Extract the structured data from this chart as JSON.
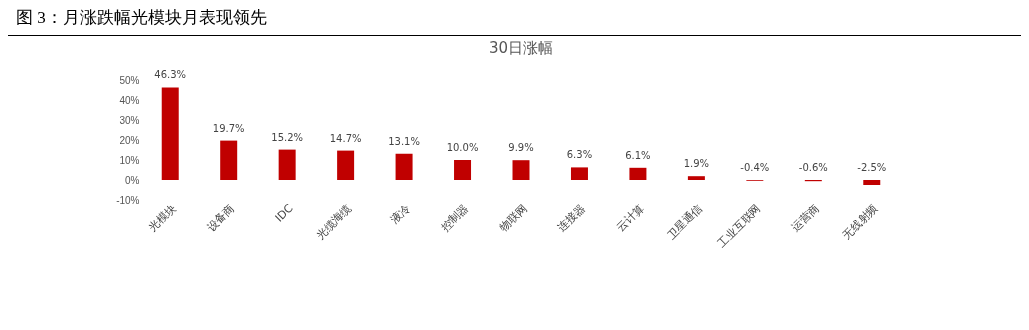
{
  "chart_data": {
    "type": "bar",
    "title": "图 3：月涨跌幅光模块月表现领先",
    "subtitle": "30日涨幅",
    "categories": [
      "光模块",
      "设备商",
      "IDC",
      "光缆海缆",
      "液冷",
      "控制器",
      "物联网",
      "连接器",
      "云计算",
      "卫星通信",
      "工业互联网",
      "运营商",
      "无线射频"
    ],
    "values": [
      46.3,
      19.7,
      15.2,
      14.7,
      13.1,
      10.0,
      9.9,
      6.3,
      6.1,
      1.9,
      -0.4,
      -0.6,
      -2.5
    ],
    "value_labels": [
      "46.3%",
      "19.7%",
      "15.2%",
      "14.7%",
      "13.1%",
      "10.0%",
      "9.9%",
      "6.3%",
      "6.1%",
      "1.9%",
      "-0.4%",
      "-0.6%",
      "-2.5%"
    ],
    "color": "#c00000",
    "ylim": [
      -10,
      50
    ],
    "yticks": [
      {
        "value": -10,
        "label": "-10%"
      },
      {
        "value": 0,
        "label": "0%"
      },
      {
        "value": 10,
        "label": "10%"
      },
      {
        "value": 20,
        "label": "20%"
      },
      {
        "value": 30,
        "label": "30%"
      },
      {
        "value": 40,
        "label": "40%"
      },
      {
        "value": 50,
        "label": "50%"
      }
    ]
  }
}
